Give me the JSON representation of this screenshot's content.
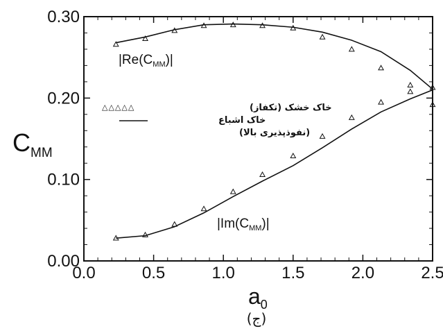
{
  "chart_data": {
    "type": "line",
    "xlabel": "a",
    "xlabel_sub": "0",
    "ylabel": "C",
    "ylabel_sub": "MM",
    "caption": "(ج)",
    "xlim": [
      0.0,
      2.5
    ],
    "ylim": [
      0.0,
      0.3
    ],
    "x_ticks": [
      0.0,
      0.5,
      1.0,
      1.5,
      2.0,
      2.5
    ],
    "x_tick_labels": [
      "0.0",
      "0.5",
      "1.0",
      "1.5",
      "2.0",
      "2.5"
    ],
    "y_ticks": [
      0.0,
      0.1,
      0.2,
      0.3
    ],
    "y_tick_labels": [
      "0.00",
      "0.10",
      "0.20",
      "0.30"
    ],
    "grid": false,
    "legend_position": "middle-left",
    "legend": {
      "marker_row": "△△△△△",
      "line1": "خاک خشک (تکفاز)",
      "line2": "خاک اشباع",
      "line3": "(نفوذپذیری بالا)"
    },
    "annotations": {
      "re_label": "|Re(C",
      "re_sub": "MM",
      "re_close": ")|",
      "im_label": "|Im(C",
      "im_sub": "MM",
      "im_close": ")|"
    },
    "series": [
      {
        "name": "خاک خشک (تکفاز)",
        "kind": "markers",
        "part": "Re",
        "x": [
          0.23,
          0.44,
          0.65,
          0.86,
          1.07,
          1.28,
          1.5,
          1.71,
          1.92,
          2.13,
          2.34,
          2.5
        ],
        "y": [
          0.266,
          0.273,
          0.283,
          0.289,
          0.29,
          0.289,
          0.286,
          0.275,
          0.26,
          0.237,
          0.216,
          0.213
        ]
      },
      {
        "name": "خاک خشک (تکفاز)",
        "kind": "markers",
        "part": "Im",
        "x": [
          0.23,
          0.44,
          0.65,
          0.86,
          1.07,
          1.28,
          1.5,
          1.71,
          1.92,
          2.13,
          2.34,
          2.5
        ],
        "y": [
          0.028,
          0.032,
          0.045,
          0.064,
          0.085,
          0.106,
          0.129,
          0.153,
          0.176,
          0.195,
          0.208,
          0.192
        ]
      },
      {
        "name": "خاک اشباع (نفوذپذیری بالا)",
        "kind": "line",
        "part": "Re",
        "x": [
          0.23,
          0.44,
          0.65,
          0.86,
          1.07,
          1.28,
          1.5,
          1.71,
          1.92,
          2.13,
          2.34,
          2.5
        ],
        "y": [
          0.268,
          0.275,
          0.284,
          0.29,
          0.291,
          0.29,
          0.287,
          0.281,
          0.271,
          0.257,
          0.234,
          0.211
        ]
      },
      {
        "name": "خاک اشباع (نفوذپذیری بالا)",
        "kind": "line",
        "part": "Im",
        "x": [
          0.23,
          0.44,
          0.65,
          0.86,
          1.07,
          1.28,
          1.5,
          1.71,
          1.92,
          2.13,
          2.34,
          2.5
        ],
        "y": [
          0.028,
          0.031,
          0.042,
          0.059,
          0.079,
          0.098,
          0.117,
          0.139,
          0.162,
          0.183,
          0.199,
          0.21
        ]
      }
    ]
  }
}
